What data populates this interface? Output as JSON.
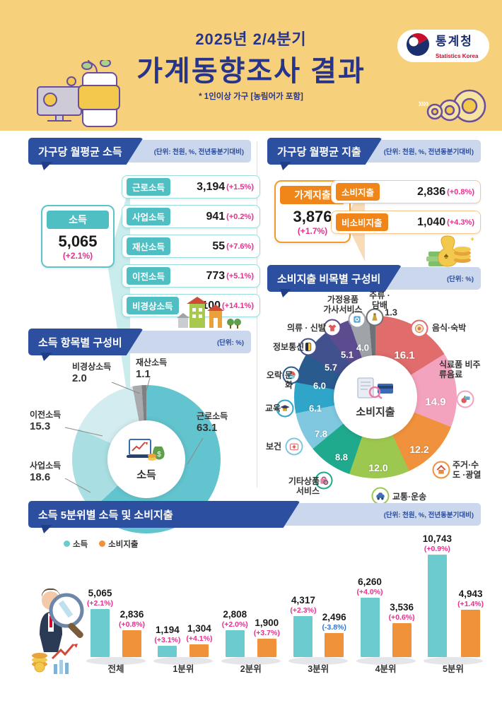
{
  "header": {
    "quarter": "2025년 2/4분기",
    "title": "가계동향조사 결과",
    "note": "* 1인이상 가구 [농림어가 포함]",
    "logo": {
      "name": "통계청",
      "sub": "Statistics Korea"
    },
    "chevrons": "»»"
  },
  "income_section": {
    "title": "가구당 월평균 소득",
    "unit": "(단위: 천원, %, 전년동분기대비)",
    "total": {
      "label": "소득",
      "value": "5,065",
      "change": "(+2.1%)"
    },
    "items": [
      {
        "label": "근로소득",
        "value": "3,194",
        "change": "(+1.5%)"
      },
      {
        "label": "사업소득",
        "value": "941",
        "change": "(+0.2%)"
      },
      {
        "label": "재산소득",
        "value": "55",
        "change": "(+7.6%)"
      },
      {
        "label": "이전소득",
        "value": "773",
        "change": "(+5.1%)"
      },
      {
        "label": "비경상소득",
        "value": "100",
        "change": "(+14.1%)"
      }
    ]
  },
  "expenditure_section": {
    "title": "가구당 월평균 지출",
    "unit": "(단위: 천원, %, 전년동분기대비)",
    "total": {
      "label": "가계지출",
      "value": "3,876",
      "change": "(+1.7%)"
    },
    "items": [
      {
        "label": "소비지출",
        "value": "2,836",
        "change": "(+0.8%)"
      },
      {
        "label": "비소비지출",
        "value": "1,040",
        "change": "(+4.3%)"
      }
    ]
  },
  "chart_data": [
    {
      "id": "income_pie",
      "type": "pie",
      "title": "소득 항목별 구성비",
      "unit": "(단위: %)",
      "center_label": "소득",
      "items": [
        {
          "label": "근로소득",
          "value": 63.1,
          "display": "63.1",
          "color": "#62C4CE"
        },
        {
          "label": "사업소득",
          "value": 18.6,
          "display": "18.6",
          "color": "#A9DEE2"
        },
        {
          "label": "이전소득",
          "value": 15.3,
          "display": "15.3",
          "color": "#D3ECEF"
        },
        {
          "label": "비경상소득",
          "value": 2.0,
          "display": "2.0",
          "color": "#A8AAAD"
        },
        {
          "label": "재산소득",
          "value": 1.1,
          "display": "1.1",
          "color": "#7E8184"
        }
      ]
    },
    {
      "id": "expense_pie",
      "type": "pie",
      "title": "소비지출 비목별 구성비",
      "unit": "(단위: %)",
      "center_label": "소비지출",
      "items": [
        {
          "label": "음식·숙박",
          "value": 16.1,
          "display": "16.1",
          "color": "#E06C6C",
          "icon": "food-icon"
        },
        {
          "label": "식료품 비주류음료",
          "value": 14.9,
          "display": "14.9",
          "color": "#F4A3BE",
          "icon": "grocery-icon"
        },
        {
          "label": "주거·수도 ·광열",
          "value": 12.2,
          "display": "12.2",
          "color": "#F0913D",
          "icon": "house-icon"
        },
        {
          "label": "교통·운송",
          "value": 12.0,
          "display": "12.0",
          "color": "#9DC850",
          "icon": "car-icon"
        },
        {
          "label": "기타상품 서비스",
          "value": 8.8,
          "display": "8.8",
          "color": "#1FA98D",
          "icon": "bag-icon"
        },
        {
          "label": "보건",
          "value": 7.8,
          "display": "7.8",
          "color": "#7FC8E0",
          "icon": "health-icon"
        },
        {
          "label": "교육",
          "value": 6.1,
          "display": "6.1",
          "color": "#2FA6C9",
          "icon": "education-icon"
        },
        {
          "label": "오락·문화",
          "value": 6.0,
          "display": "6.0",
          "color": "#2A5B8E",
          "icon": "culture-icon"
        },
        {
          "label": "정보통신",
          "value": 5.7,
          "display": "5.7",
          "color": "#41518E",
          "icon": "telecom-icon"
        },
        {
          "label": "의류 · 신발",
          "value": 5.1,
          "display": "5.1",
          "color": "#5C4C8F",
          "icon": "clothing-icon"
        },
        {
          "label": "가정용품 가사서비스",
          "value": 4.0,
          "display": "4.0",
          "color": "#A0A4AA",
          "icon": "household-icon"
        },
        {
          "label": "주류 ·담배",
          "value": 1.3,
          "display": "1.3",
          "color": "#6E7276",
          "icon": "liquor-icon"
        }
      ]
    },
    {
      "id": "quintile_bar",
      "type": "bar",
      "title": "소득 5분위별 소득 및 소비지출",
      "unit": "(단위: 천원, %, 전년동분기대비)",
      "categories": [
        "전체",
        "1분위",
        "2분위",
        "3분위",
        "4분위",
        "5분위"
      ],
      "max_value": 10743,
      "series": [
        {
          "name": "소득",
          "color": "#6CCBCF",
          "values": [
            5065,
            1194,
            2808,
            4317,
            6260,
            10743
          ],
          "labels": [
            "5,065",
            "1,194",
            "2,808",
            "4,317",
            "6,260",
            "10,743"
          ],
          "changes": [
            "(+2.1%)",
            "(+3.1%)",
            "(+2.0%)",
            "(+2.3%)",
            "(+4.0%)",
            "(+0.9%)"
          ]
        },
        {
          "name": "소비지출",
          "color": "#F0923A",
          "values": [
            2836,
            1304,
            1900,
            2496,
            3536,
            4943
          ],
          "labels": [
            "2,836",
            "1,304",
            "1,900",
            "2,496",
            "3,536",
            "4,943"
          ],
          "changes": [
            "(+0.8%)",
            "(+4.1%)",
            "(+3.7%)",
            "(-3.8%)",
            "(+0.6%)",
            "(+1.4%)"
          ]
        }
      ]
    }
  ]
}
